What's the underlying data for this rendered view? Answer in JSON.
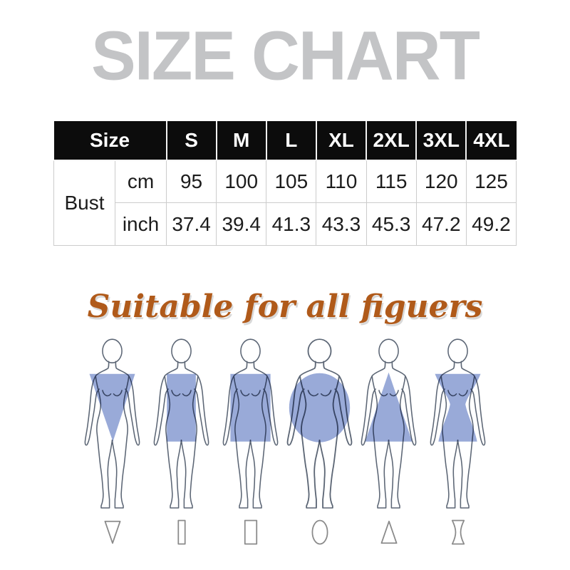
{
  "title": {
    "text": "SIZE CHART",
    "color": "#c3c4c6"
  },
  "size_table": {
    "corner_label": "Size",
    "sizes": [
      "S",
      "M",
      "L",
      "XL",
      "2XL",
      "3XL",
      "4XL"
    ],
    "measurement": "Bust",
    "rows": [
      {
        "unit": "cm",
        "values": [
          "95",
          "100",
          "105",
          "110",
          "115",
          "120",
          "125"
        ]
      },
      {
        "unit": "inch",
        "values": [
          "37.4",
          "39.4",
          "41.3",
          "43.3",
          "45.3",
          "47.2",
          "49.2"
        ]
      }
    ],
    "colors": {
      "header_bg": "#0c0c0c",
      "header_text": "#ffffff",
      "body_text": "#1c1c1c",
      "grid": "#cccccc"
    }
  },
  "subtitle": {
    "text": "Suitable for all figuers",
    "color": "#b05a1a"
  },
  "figures": {
    "colors": {
      "overlay": "#8095cf",
      "outline": "#5c6675",
      "symbol": "#8a8a8a"
    },
    "items": [
      {
        "body_type": "inverted-triangle",
        "wide": false
      },
      {
        "body_type": "rectangle-slim",
        "wide": false
      },
      {
        "body_type": "rectangle",
        "wide": false
      },
      {
        "body_type": "round",
        "wide": true
      },
      {
        "body_type": "triangle",
        "wide": false
      },
      {
        "body_type": "hourglass",
        "wide": false
      }
    ]
  }
}
